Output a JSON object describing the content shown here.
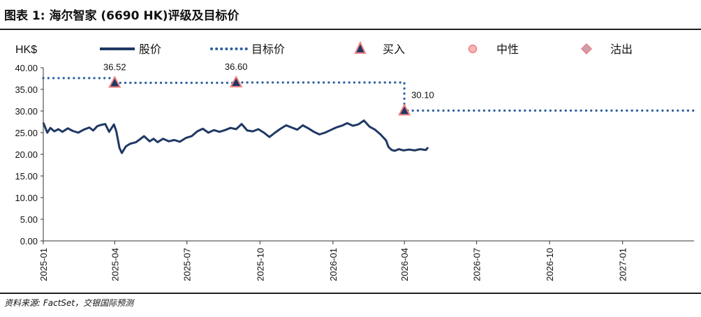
{
  "header": {
    "title": "图表 1: 海尔智家 (6690 HK)评级及目标价"
  },
  "footer": {
    "source": "资料来源: FactSet，交银国际预测"
  },
  "colors": {
    "price": "#1f3864",
    "target": "#2e5f9e",
    "marker_fill": "#1f3864",
    "marker_edge": "#f08080",
    "neutral_fill": "#f4b6b6",
    "sell_fill": "#c8a0b0",
    "axis": "#333333"
  },
  "chart_data": {
    "type": "line",
    "title": "",
    "ylabel": "HK$",
    "ylim": [
      0,
      40
    ],
    "yticks": [
      "0.00",
      "5.00",
      "10.00",
      "15.00",
      "20.00",
      "25.00",
      "30.00",
      "35.00",
      "40.00"
    ],
    "xlim": [
      "2025-01-01",
      "2027-04-01"
    ],
    "xticks": [
      "2025-01",
      "2025-04",
      "2025-07",
      "2025-10",
      "2026-01",
      "2026-04",
      "2026-07",
      "2026-10",
      "2027-01"
    ],
    "grid": false,
    "legend": {
      "placement": "top",
      "items": [
        {
          "label": "股价",
          "style": "solid-line"
        },
        {
          "label": "目标价",
          "style": "dotted-line"
        },
        {
          "label": "买入",
          "style": "triangle-icon"
        },
        {
          "label": "中性",
          "style": "circle-icon"
        },
        {
          "label": "沽出",
          "style": "diamond-icon"
        }
      ]
    },
    "series": [
      {
        "name": "股价",
        "x": [
          "2025-01-01",
          "2025-01-06",
          "2025-01-10",
          "2025-01-15",
          "2025-01-20",
          "2025-01-25",
          "2025-02-01",
          "2025-02-07",
          "2025-02-14",
          "2025-02-21",
          "2025-02-28",
          "2025-03-05",
          "2025-03-10",
          "2025-03-15",
          "2025-03-20",
          "2025-03-25",
          "2025-03-31",
          "2025-04-03",
          "2025-04-07",
          "2025-04-10",
          "2025-04-15",
          "2025-04-20",
          "2025-04-28",
          "2025-05-08",
          "2025-05-15",
          "2025-05-20",
          "2025-05-25",
          "2025-06-01",
          "2025-06-08",
          "2025-06-15",
          "2025-06-22",
          "2025-06-30",
          "2025-07-07",
          "2025-07-14",
          "2025-07-21",
          "2025-07-28",
          "2025-08-04",
          "2025-08-11",
          "2025-08-18",
          "2025-08-25",
          "2025-09-01",
          "2025-09-08",
          "2025-09-15",
          "2025-09-22",
          "2025-09-29",
          "2025-10-06",
          "2025-10-13",
          "2025-10-20",
          "2025-10-27",
          "2025-11-03",
          "2025-11-10",
          "2025-11-17",
          "2025-11-24",
          "2025-12-01",
          "2025-12-08",
          "2025-12-15",
          "2025-12-22",
          "2025-12-29",
          "2026-01-05",
          "2026-01-12",
          "2026-01-19",
          "2026-01-26",
          "2026-02-02",
          "2026-02-09",
          "2026-02-16",
          "2026-02-23",
          "2026-03-02",
          "2026-03-09",
          "2026-03-12",
          "2026-03-16",
          "2026-03-20",
          "2026-03-25",
          "2026-03-31",
          "2026-04-07",
          "2026-04-14",
          "2026-04-21",
          "2026-04-28",
          "2026-05-01"
        ],
        "values": [
          27.3,
          25.0,
          26.1,
          25.3,
          25.8,
          25.2,
          26.0,
          25.4,
          25.0,
          25.7,
          26.2,
          25.5,
          26.5,
          26.8,
          27.0,
          25.2,
          26.9,
          25.3,
          21.5,
          20.3,
          21.8,
          22.4,
          22.8,
          24.2,
          23.0,
          23.6,
          22.8,
          23.6,
          23.0,
          23.3,
          22.9,
          23.8,
          24.2,
          25.3,
          25.9,
          25.0,
          25.6,
          25.2,
          25.6,
          26.1,
          25.8,
          27.0,
          25.5,
          25.3,
          25.8,
          25.0,
          24.0,
          25.0,
          25.9,
          26.7,
          26.2,
          25.7,
          26.7,
          26.0,
          25.2,
          24.6,
          25.0,
          25.6,
          26.2,
          26.6,
          27.2,
          26.6,
          26.9,
          27.8,
          26.4,
          25.7,
          24.6,
          23.2,
          21.7,
          21.0,
          20.8,
          21.2,
          20.9,
          21.1,
          20.9,
          21.2,
          21.0,
          21.6
        ]
      },
      {
        "name": "目标价",
        "x": [
          "2025-01-01",
          "2025-04-01",
          "2025-04-01",
          "2025-09-01",
          "2025-09-01",
          "2026-04-01",
          "2026-04-01",
          "2027-03-31"
        ],
        "values": [
          37.6,
          37.6,
          36.52,
          36.52,
          36.6,
          36.6,
          30.1,
          30.1
        ]
      }
    ],
    "ratings": [
      {
        "date": "2025-04-01",
        "rating": "买入",
        "target": 36.52,
        "label": "36.52"
      },
      {
        "date": "2025-09-01",
        "rating": "买入",
        "target": 36.6,
        "label": "36.60"
      },
      {
        "date": "2026-04-01",
        "rating": "买入",
        "target": 30.1,
        "label": "30.10"
      }
    ]
  }
}
